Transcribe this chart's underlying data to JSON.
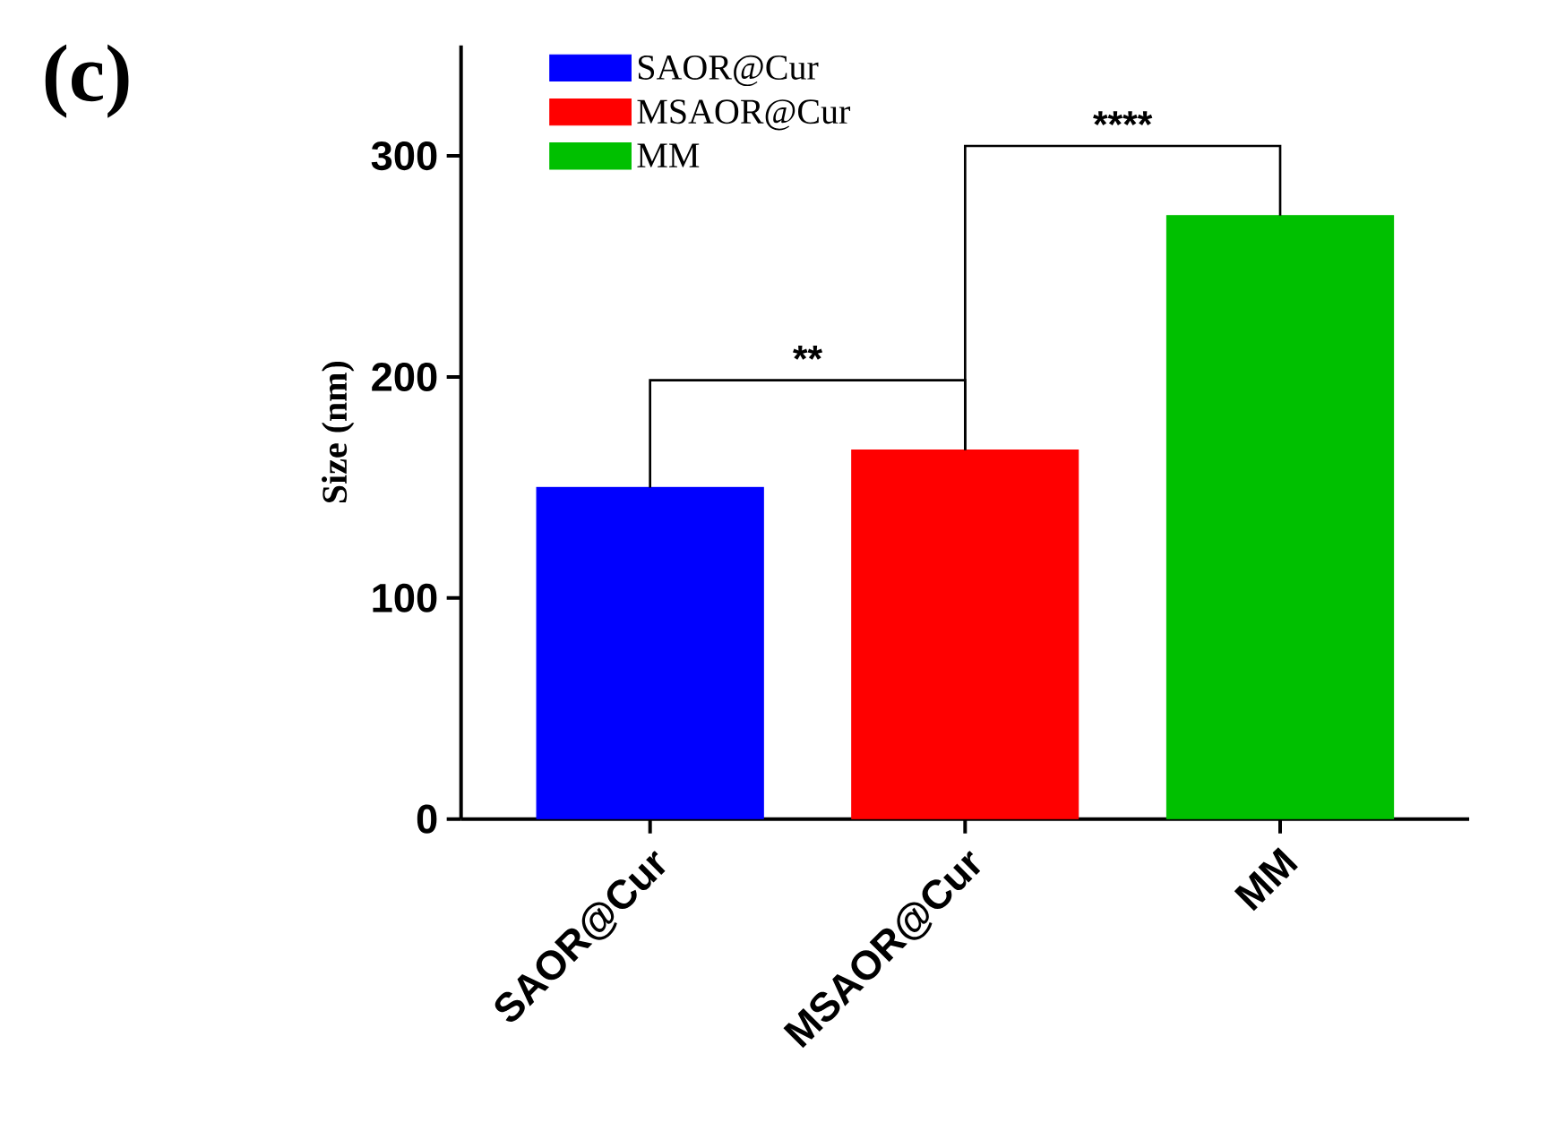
{
  "chart_data": {
    "type": "bar",
    "ylabel": "Size (nm)",
    "categories": [
      "SAOR@Cur",
      "MSAOR@Cur",
      "MM"
    ],
    "series": [
      {
        "name": "SAOR@Cur",
        "color": "#0000ff",
        "values": [
          150,
          null,
          null
        ]
      },
      {
        "name": "MSAOR@Cur",
        "color": "#ff0000",
        "values": [
          null,
          167,
          null
        ]
      },
      {
        "name": "MM",
        "color": "#00c000",
        "values": [
          null,
          null,
          273
        ]
      }
    ],
    "ylim": [
      0,
      350
    ],
    "yticks": [
      0,
      100,
      200,
      300
    ],
    "grid": false,
    "legend": "top left",
    "annotations": [
      "(c)",
      "**",
      "****"
    ]
  }
}
